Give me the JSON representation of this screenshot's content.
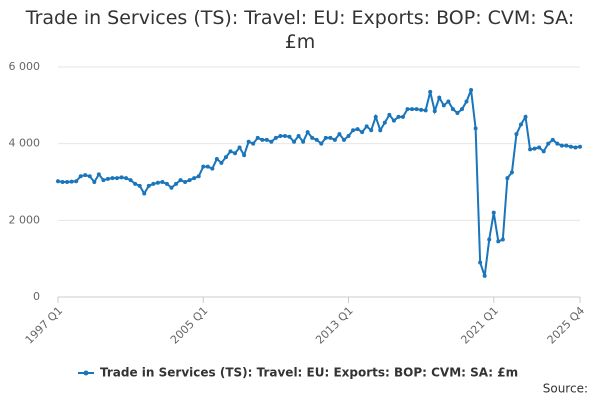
{
  "chart_data": {
    "type": "line",
    "title": "Trade in Services (TS): Travel: EU: Exports: BOP: CVM: SA: £m",
    "source": "Source:",
    "categories": [
      "1997 Q1",
      null,
      null,
      null,
      null,
      null,
      null,
      null,
      null,
      null,
      null,
      null,
      null,
      null,
      null,
      null,
      null,
      null,
      null,
      null,
      null,
      null,
      null,
      null,
      null,
      null,
      null,
      null,
      null,
      null,
      null,
      null,
      "2005 Q1",
      null,
      null,
      null,
      null,
      null,
      null,
      null,
      null,
      null,
      null,
      null,
      null,
      null,
      null,
      null,
      null,
      null,
      null,
      null,
      null,
      null,
      null,
      null,
      null,
      null,
      null,
      null,
      null,
      null,
      null,
      null,
      "2013 Q1",
      null,
      null,
      null,
      null,
      null,
      null,
      null,
      null,
      null,
      null,
      null,
      null,
      null,
      null,
      null,
      null,
      null,
      null,
      null,
      null,
      null,
      null,
      null,
      null,
      null,
      null,
      null,
      null,
      null,
      null,
      null,
      "2021 Q1",
      null,
      null,
      null,
      null,
      null,
      null,
      null,
      null,
      null,
      null,
      null,
      null,
      null,
      null,
      null,
      null,
      null,
      null,
      "2025 Q4"
    ],
    "series": [
      {
        "name": "Trade in Services (TS): Travel: EU: Exports: BOP: CVM: SA: £m",
        "color": "#1a75bb",
        "values": [
          3020,
          3000,
          3000,
          3010,
          3020,
          3150,
          3180,
          3150,
          3000,
          3200,
          3050,
          3080,
          3100,
          3100,
          3120,
          3100,
          3050,
          2950,
          2900,
          2700,
          2900,
          2950,
          2980,
          3000,
          2950,
          2850,
          2950,
          3050,
          3000,
          3050,
          3100,
          3150,
          3400,
          3400,
          3350,
          3600,
          3500,
          3650,
          3800,
          3750,
          3900,
          3700,
          4050,
          4000,
          4150,
          4100,
          4100,
          4050,
          4150,
          4200,
          4200,
          4180,
          4050,
          4200,
          4050,
          4300,
          4150,
          4100,
          4000,
          4150,
          4150,
          4100,
          4250,
          4100,
          4200,
          4350,
          4380,
          4300,
          4450,
          4350,
          4700,
          4350,
          4550,
          4750,
          4600,
          4700,
          4700,
          4900,
          4900,
          4900,
          4880,
          4870,
          5350,
          4850,
          5200,
          5000,
          5100,
          4900,
          4800,
          4900,
          5100,
          5400,
          4400,
          900,
          550,
          1500,
          2200,
          1450,
          1500,
          3100,
          3250,
          4250,
          4500,
          4700,
          3850,
          3870,
          3900,
          3800,
          4000,
          4100,
          4000,
          3950,
          3950,
          3920,
          3900,
          3920
        ]
      }
    ],
    "ylim": [
      0,
      6000
    ],
    "yticks": [
      0,
      {
        "value": 2000,
        "label": "2 000"
      },
      {
        "value": 4000,
        "label": "4 000"
      },
      {
        "value": 6000,
        "label": "6 000"
      }
    ],
    "grid": true
  }
}
